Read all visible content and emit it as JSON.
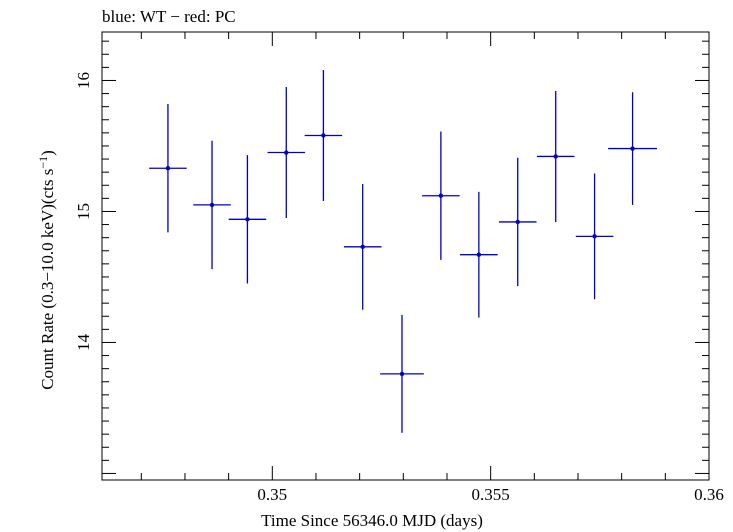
{
  "chart_data": {
    "type": "scatter",
    "title": "blue: WT − red: PC",
    "xlabel": "Time Since 56346.0 MJD (days)",
    "ylabel_main": "Count Rate (0.3−10.0 keV)(cts s",
    "ylabel_sup": "−1",
    "ylabel_end": ")",
    "xlim": [
      0.3461,
      0.36
    ],
    "ylim": [
      12.95,
      16.37
    ],
    "x_ticks": [
      {
        "value": 0.35,
        "label": "0.35"
      },
      {
        "value": 0.355,
        "label": "0.355"
      },
      {
        "value": 0.36,
        "label": "0.36"
      }
    ],
    "y_ticks": [
      {
        "value": 14,
        "label": "14"
      },
      {
        "value": 15,
        "label": "15"
      },
      {
        "value": 16,
        "label": "16"
      }
    ],
    "series": [
      {
        "name": "WT",
        "color": "#0000cc",
        "points": [
          {
            "x": 0.34761,
            "xerr": 0.00043,
            "y": 15.33,
            "yerr": 0.49
          },
          {
            "x": 0.34862,
            "xerr": 0.00043,
            "y": 15.05,
            "yerr": 0.49
          },
          {
            "x": 0.34943,
            "xerr": 0.00043,
            "y": 14.94,
            "yerr": 0.49
          },
          {
            "x": 0.35032,
            "xerr": 0.00043,
            "y": 15.45,
            "yerr": 0.5
          },
          {
            "x": 0.35117,
            "xerr": 0.00043,
            "y": 15.58,
            "yerr": 0.5
          },
          {
            "x": 0.35207,
            "xerr": 0.00043,
            "y": 14.73,
            "yerr": 0.48
          },
          {
            "x": 0.35297,
            "xerr": 0.0005,
            "y": 13.76,
            "yerr": 0.45
          },
          {
            "x": 0.35386,
            "xerr": 0.00043,
            "y": 15.12,
            "yerr": 0.49
          },
          {
            "x": 0.35473,
            "xerr": 0.00043,
            "y": 14.67,
            "yerr": 0.48
          },
          {
            "x": 0.35562,
            "xerr": 0.00043,
            "y": 14.92,
            "yerr": 0.49
          },
          {
            "x": 0.35649,
            "xerr": 0.00043,
            "y": 15.42,
            "yerr": 0.5
          },
          {
            "x": 0.35738,
            "xerr": 0.00043,
            "y": 14.81,
            "yerr": 0.48
          },
          {
            "x": 0.35825,
            "xerr": 0.00056,
            "y": 15.48,
            "yerr": 0.43
          }
        ]
      },
      {
        "name": "PC",
        "color": "#cc0000",
        "points": []
      }
    ]
  }
}
